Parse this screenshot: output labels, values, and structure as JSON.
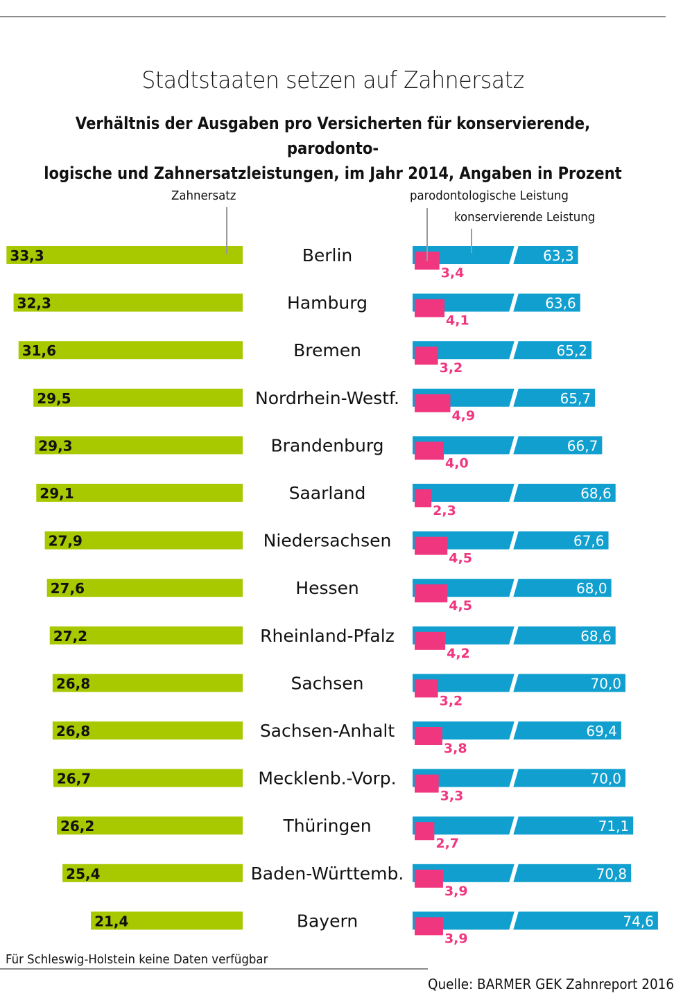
{
  "colors": {
    "zahnersatz": "#a8c800",
    "konservierend": "#109fcf",
    "parodontologisch": "#f0367f",
    "text": "#111111"
  },
  "chart_data": {
    "type": "bar",
    "title": "Stadtstaaten setzen auf Zahnersatz",
    "subtitle_line1": "Verhältnis der Ausgaben pro Versicherten für konservierende, parodonto-",
    "subtitle_line2": "logische und Zahnersatzleistungen, im Jahr 2014, Angaben in Prozent",
    "unit": "Prozent",
    "legend": {
      "zahnersatz": "Zahnersatz",
      "parodontologisch": "parodontologische Leistung",
      "konservierend": "konservierende Leistung"
    },
    "categories": [
      "Berlin",
      "Hamburg",
      "Bremen",
      "Nordrhein-Westf.",
      "Brandenburg",
      "Saarland",
      "Niedersachsen",
      "Hessen",
      "Rheinland-Pfalz",
      "Sachsen",
      "Sachsen-Anhalt",
      "Mecklenb.-Vorp.",
      "Thüringen",
      "Baden-Württemb.",
      "Bayern"
    ],
    "series": [
      {
        "key": "zahnersatz",
        "name": "Zahnersatz",
        "values": [
          33.3,
          32.3,
          31.6,
          29.5,
          29.3,
          29.1,
          27.9,
          27.6,
          27.2,
          26.8,
          26.8,
          26.7,
          26.2,
          25.4,
          21.4
        ],
        "labels": [
          "33,3",
          "32,3",
          "31,6",
          "29,5",
          "29,3",
          "29,1",
          "27,9",
          "27,6",
          "27,2",
          "26,8",
          "26,8",
          "26,7",
          "26,2",
          "25,4",
          "21,4"
        ]
      },
      {
        "key": "konservierend",
        "name": "konservierende Leistung",
        "values": [
          63.3,
          63.6,
          65.2,
          65.7,
          66.7,
          68.6,
          67.6,
          68.0,
          68.6,
          70.0,
          69.4,
          70.0,
          71.1,
          70.8,
          74.6
        ],
        "labels": [
          "63,3",
          "63,6",
          "65,2",
          "65,7",
          "66,7",
          "68,6",
          "67,6",
          "68,0",
          "68,6",
          "70,0",
          "69,4",
          "70,0",
          "71,1",
          "70,8",
          "74,6"
        ],
        "axis_break": true
      },
      {
        "key": "parodontologisch",
        "name": "parodontologische Leistung",
        "values": [
          3.4,
          4.1,
          3.2,
          4.9,
          4.0,
          2.3,
          4.5,
          4.5,
          4.2,
          3.2,
          3.8,
          3.3,
          2.7,
          3.9,
          3.9
        ],
        "labels": [
          "3,4",
          "4,1",
          "3,2",
          "4,9",
          "4,0",
          "2,3",
          "4,5",
          "4,5",
          "4,2",
          "3,2",
          "3,8",
          "3,3",
          "2,7",
          "3,9",
          "3,9"
        ]
      }
    ],
    "footnote": "Für Schleswig-Holstein keine Daten verfügbar",
    "source": "Quelle: BARMER GEK Zahnreport 2016"
  }
}
